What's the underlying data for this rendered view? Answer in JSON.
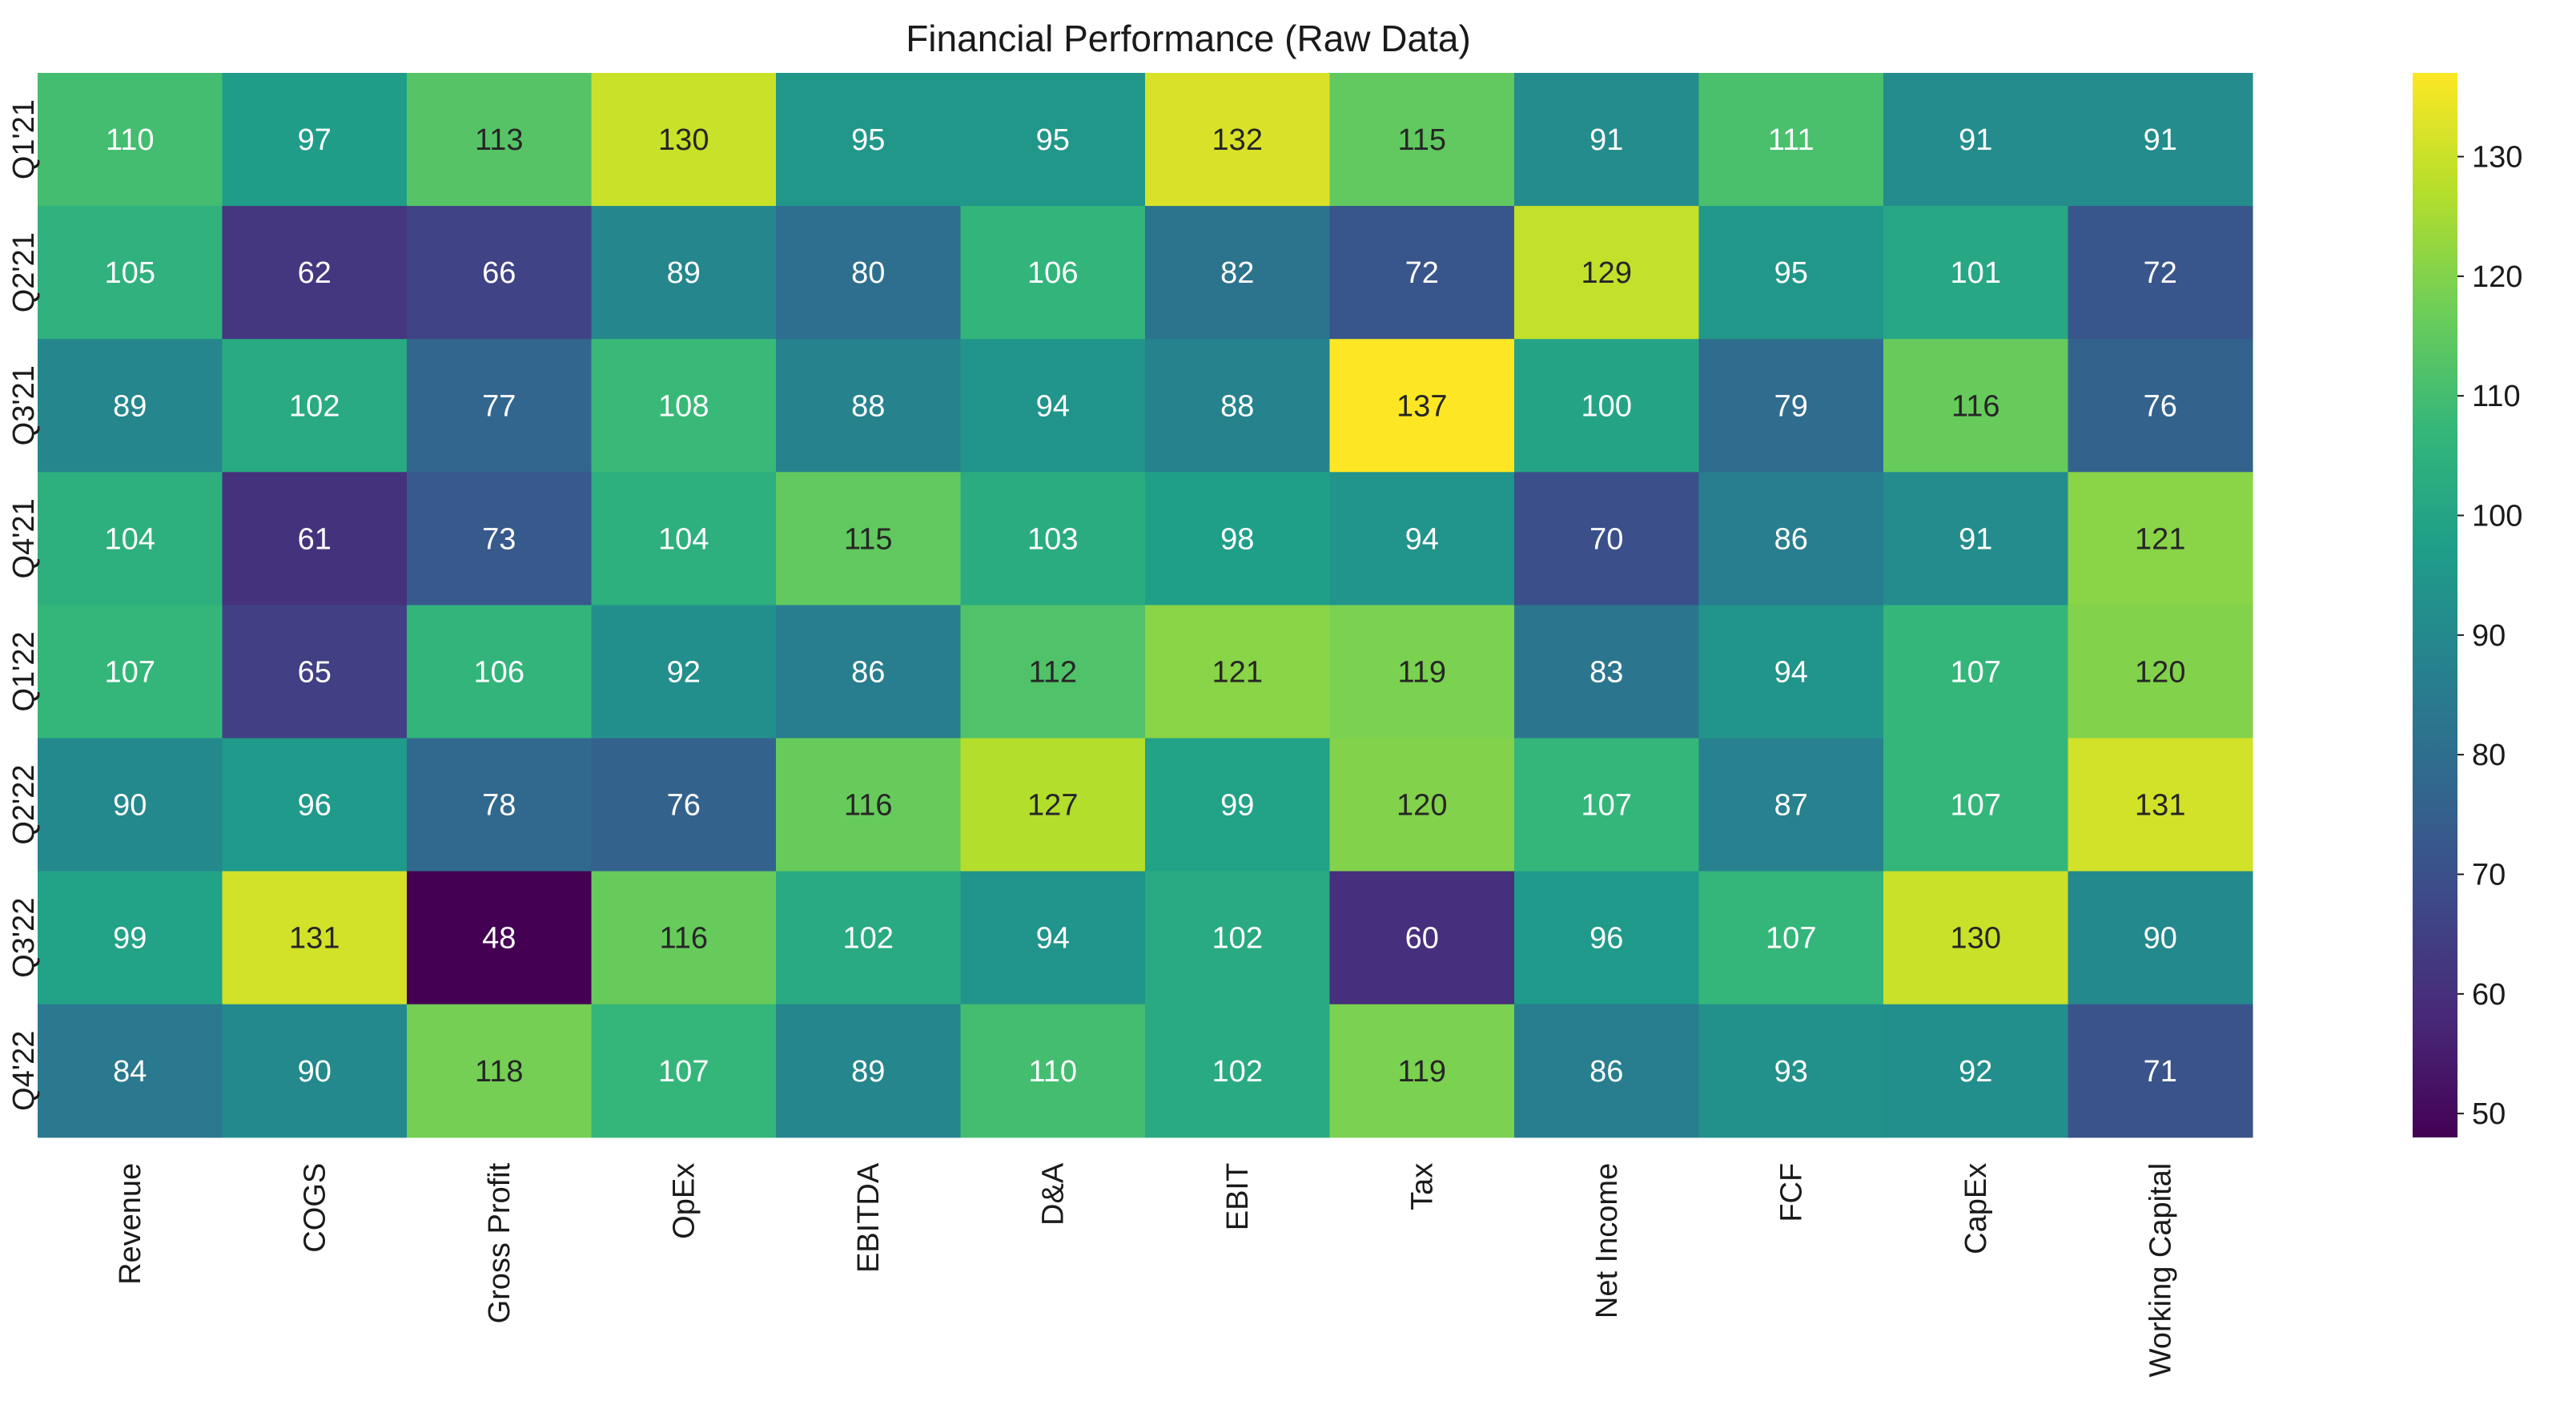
{
  "chart_data": {
    "type": "heatmap",
    "title": "Financial Performance (Raw Data)",
    "xlabel": "",
    "ylabel": "",
    "colormap": "viridis",
    "columns": [
      "Revenue",
      "COGS",
      "Gross Profit",
      "OpEx",
      "EBITDA",
      "D&A",
      "EBIT",
      "Tax",
      "Net Income",
      "FCF",
      "CapEx",
      "Working Capital"
    ],
    "rows": [
      "Q1'21",
      "Q2'21",
      "Q3'21",
      "Q4'21",
      "Q1'22",
      "Q2'22",
      "Q3'22",
      "Q4'22"
    ],
    "values": [
      [
        110,
        97,
        113,
        130,
        95,
        95,
        132,
        115,
        91,
        111,
        91,
        91
      ],
      [
        105,
        62,
        66,
        89,
        80,
        106,
        82,
        72,
        129,
        95,
        101,
        72
      ],
      [
        89,
        102,
        77,
        108,
        88,
        94,
        88,
        137,
        100,
        79,
        116,
        76
      ],
      [
        104,
        61,
        73,
        104,
        115,
        103,
        98,
        94,
        70,
        86,
        91,
        121
      ],
      [
        107,
        65,
        106,
        92,
        86,
        112,
        121,
        119,
        83,
        94,
        107,
        120
      ],
      [
        90,
        96,
        78,
        76,
        116,
        127,
        99,
        120,
        107,
        87,
        107,
        131
      ],
      [
        99,
        131,
        48,
        116,
        102,
        94,
        102,
        60,
        96,
        107,
        130,
        90
      ],
      [
        84,
        90,
        118,
        107,
        89,
        110,
        102,
        119,
        86,
        93,
        92,
        71
      ]
    ],
    "vmin": 48,
    "vmax": 137,
    "colorbar_ticks": [
      50,
      60,
      70,
      80,
      90,
      100,
      110,
      120,
      130
    ],
    "grid": false,
    "legend": "colorbar-right"
  }
}
